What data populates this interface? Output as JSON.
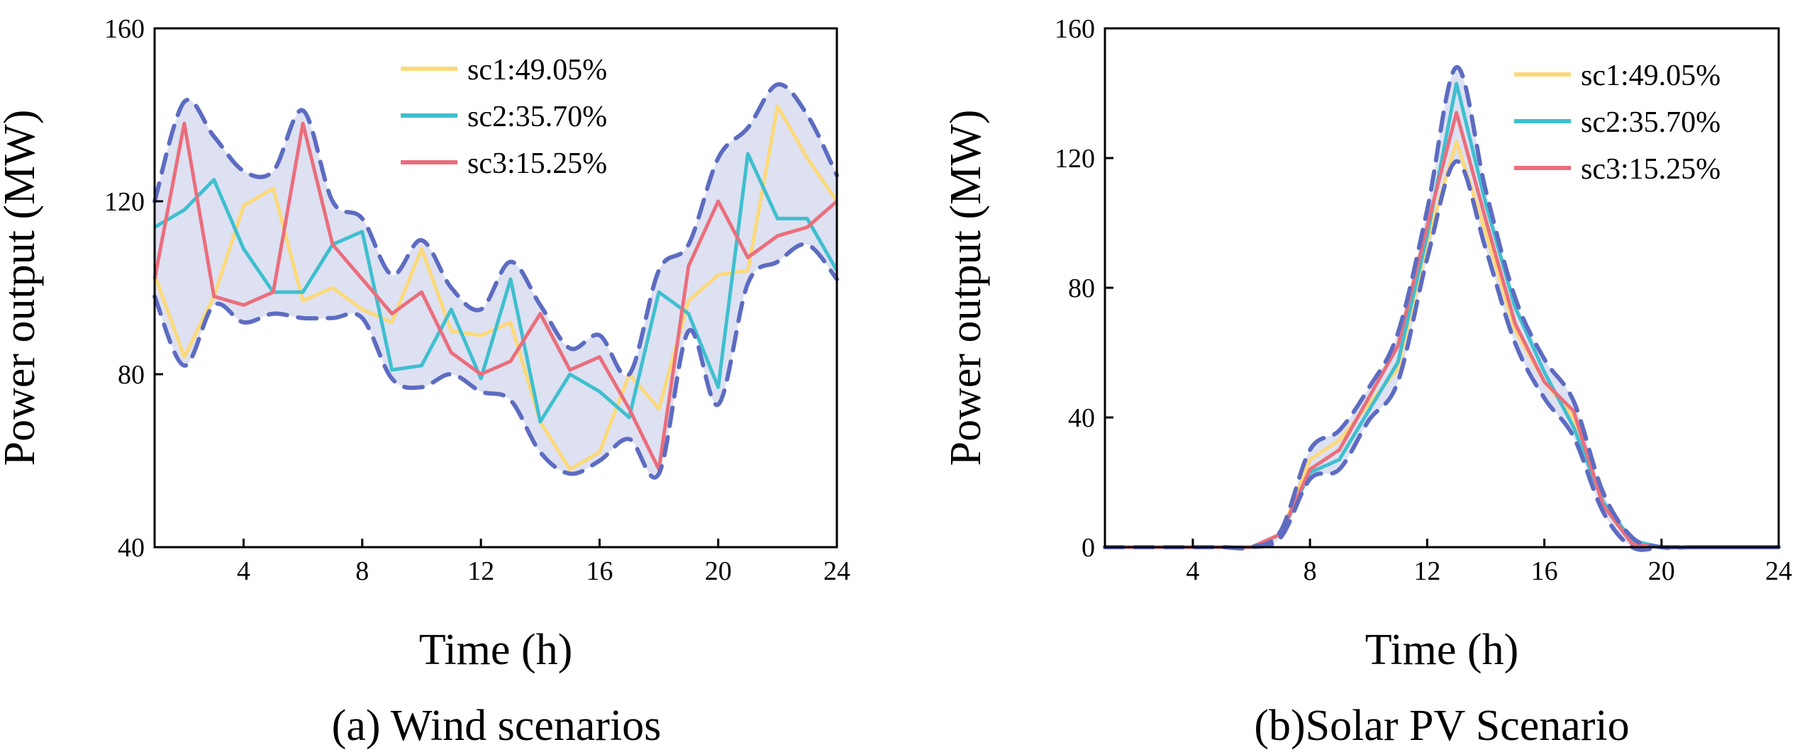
{
  "colors": {
    "sc1": "#fcd97a",
    "sc2": "#3fbfcf",
    "sc3": "#ea6e7c",
    "band_fill": "#dde1f2",
    "band_edge": "#5d6cc2"
  },
  "chart_data": [
    {
      "type": "line",
      "title": "(a) Wind scenarios",
      "xlabel": "Time (h)",
      "ylabel": "Power output (MW)",
      "xlim": [
        1,
        24
      ],
      "ylim": [
        40,
        160
      ],
      "xticks": [
        4,
        8,
        12,
        16,
        20,
        24
      ],
      "yticks": [
        40,
        80,
        120,
        160
      ],
      "grid": false,
      "legend_position": "top-center",
      "x": [
        1,
        2,
        3,
        4,
        5,
        6,
        7,
        8,
        9,
        10,
        11,
        12,
        13,
        14,
        15,
        16,
        17,
        18,
        19,
        20,
        21,
        22,
        23,
        24
      ],
      "series": [
        {
          "name": "sc1:49.05%",
          "color_key": "sc1",
          "values": [
            103,
            84,
            98,
            119,
            123,
            97,
            100,
            95,
            92,
            109,
            90,
            89,
            92,
            69,
            58,
            62,
            80,
            72,
            97,
            103,
            104,
            142,
            130,
            120
          ]
        },
        {
          "name": "sc2:35.70%",
          "color_key": "sc2",
          "values": [
            114,
            118,
            125,
            109,
            99,
            99,
            110,
            113,
            81,
            82,
            95,
            79,
            102,
            69,
            80,
            76,
            70,
            99,
            94,
            77,
            131,
            116,
            116,
            104
          ]
        },
        {
          "name": "sc3:15.25%",
          "color_key": "sc3",
          "values": [
            102,
            138,
            98,
            96,
            99,
            138,
            110,
            102,
            94,
            99,
            85,
            80,
            83,
            94,
            81,
            84,
            72,
            58,
            105,
            120,
            107,
            112,
            114,
            120
          ]
        }
      ],
      "band_upper": [
        120,
        143,
        135,
        127,
        127,
        141,
        120,
        116,
        103,
        111,
        100,
        95,
        106,
        96,
        86,
        89,
        80,
        104,
        110,
        130,
        137,
        147,
        140,
        126
      ],
      "band_lower": [
        98,
        82,
        96,
        92,
        94,
        93,
        93,
        93,
        79,
        77,
        80,
        76,
        74,
        62,
        57,
        60,
        65,
        57,
        90,
        73,
        101,
        106,
        110,
        102
      ]
    },
    {
      "type": "line",
      "title": "(b)Solar PV Scenario",
      "xlabel": "Time (h)",
      "ylabel": "Power output (MW)",
      "xlim": [
        1,
        24
      ],
      "ylim": [
        0,
        160
      ],
      "xticks": [
        4,
        8,
        12,
        16,
        20,
        24
      ],
      "yticks": [
        0,
        40,
        80,
        120,
        160
      ],
      "grid": false,
      "legend_position": "top-right",
      "x": [
        1,
        2,
        3,
        4,
        5,
        6,
        7,
        8,
        9,
        10,
        11,
        12,
        13,
        14,
        15,
        16,
        17,
        18,
        19,
        20,
        21,
        22,
        23,
        24
      ],
      "series": [
        {
          "name": "sc1:49.05%",
          "color_key": "sc1",
          "values": [
            0,
            0,
            0,
            0,
            0,
            0,
            4,
            27,
            33,
            44,
            55,
            94,
            125,
            97,
            67,
            51,
            40,
            14,
            1,
            0,
            0,
            0,
            0,
            0
          ]
        },
        {
          "name": "sc2:35.70%",
          "color_key": "sc2",
          "values": [
            0,
            0,
            0,
            0,
            0,
            0,
            4,
            23,
            27,
            42,
            57,
            96,
            143,
            106,
            74,
            54,
            37,
            14,
            2,
            0,
            0,
            0,
            0,
            0
          ]
        },
        {
          "name": "sc3:15.25%",
          "color_key": "sc3",
          "values": [
            0,
            0,
            0,
            0,
            0,
            0,
            4,
            24,
            30,
            46,
            62,
            99,
            134,
            101,
            69,
            51,
            42,
            13,
            1,
            0,
            0,
            0,
            0,
            0
          ]
        }
      ],
      "band_upper": [
        0,
        0,
        0,
        0,
        0,
        0,
        5,
        30,
        36,
        49,
        66,
        104,
        148,
        110,
        77,
        58,
        45,
        17,
        3,
        0,
        0,
        0,
        0,
        0
      ],
      "band_lower": [
        0,
        0,
        0,
        0,
        0,
        0,
        3,
        21,
        24,
        39,
        51,
        89,
        119,
        92,
        63,
        46,
        34,
        11,
        0,
        0,
        0,
        0,
        0,
        0
      ]
    }
  ]
}
